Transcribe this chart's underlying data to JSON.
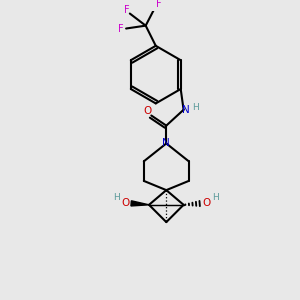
{
  "bg_color": "#e8e8e8",
  "atom_colors": {
    "C": "#000000",
    "N": "#0000cc",
    "O": "#cc0000",
    "F": "#cc00cc",
    "H": "#5a9a9a"
  },
  "bond_color": "#000000",
  "bond_width": 1.5,
  "layout": {
    "xlim": [
      0,
      10
    ],
    "ylim": [
      0,
      10
    ]
  }
}
